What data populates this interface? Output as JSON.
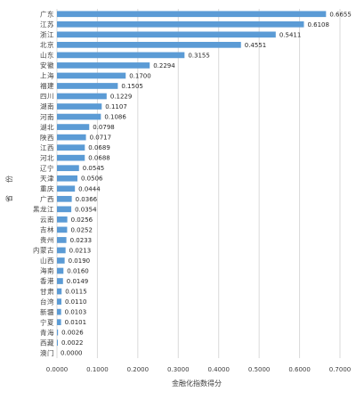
{
  "chart_data": {
    "type": "bar",
    "orientation": "horizontal",
    "xlabel": "金融化指数得分",
    "ylabel": "省份",
    "xlim": [
      0,
      0.7
    ],
    "xticks": [
      "0.0000",
      "0.1000",
      "0.2000",
      "0.3000",
      "0.4000",
      "0.5000",
      "0.6000",
      "0.7000"
    ],
    "grid": true,
    "bar_color": "#5b9bd5",
    "categories": [
      "广东",
      "江苏",
      "浙江",
      "北京",
      "山东",
      "安徽",
      "上海",
      "福建",
      "四川",
      "湖南",
      "河南",
      "湖北",
      "陕西",
      "江西",
      "河北",
      "辽宁",
      "天津",
      "重庆",
      "广西",
      "黑龙江",
      "云南",
      "吉林",
      "贵州",
      "内蒙古",
      "山西",
      "海南",
      "香港",
      "甘肃",
      "台湾",
      "新疆",
      "宁夏",
      "青海",
      "西藏",
      "澳门"
    ],
    "values": [
      0.6655,
      0.6108,
      0.5411,
      0.4551,
      0.3155,
      0.2294,
      0.17,
      0.1505,
      0.1229,
      0.1107,
      0.1086,
      0.0798,
      0.0717,
      0.0689,
      0.0688,
      0.0545,
      0.0506,
      0.0444,
      0.0366,
      0.0354,
      0.0256,
      0.0252,
      0.0233,
      0.0213,
      0.019,
      0.016,
      0.0149,
      0.0115,
      0.011,
      0.0103,
      0.0101,
      0.0026,
      0.0022,
      0.0
    ],
    "value_labels": [
      "0.6655",
      "0.6108",
      "0.5411",
      "0.4551",
      "0.3155",
      "0.2294",
      "0.1700",
      "0.1505",
      "0.1229",
      "0.1107",
      "0.1086",
      "0.0798",
      "0.0717",
      "0.0689",
      "0.0688",
      "0.0545",
      "0.0506",
      "0.0444",
      "0.0366",
      "0.0354",
      "0.0256",
      "0.0252",
      "0.0233",
      "0.0213",
      "0.0190",
      "0.0160",
      "0.0149",
      "0.0115",
      "0.0110",
      "0.0103",
      "0.0101",
      "0.0026",
      "0.0022",
      "0.0000"
    ]
  }
}
